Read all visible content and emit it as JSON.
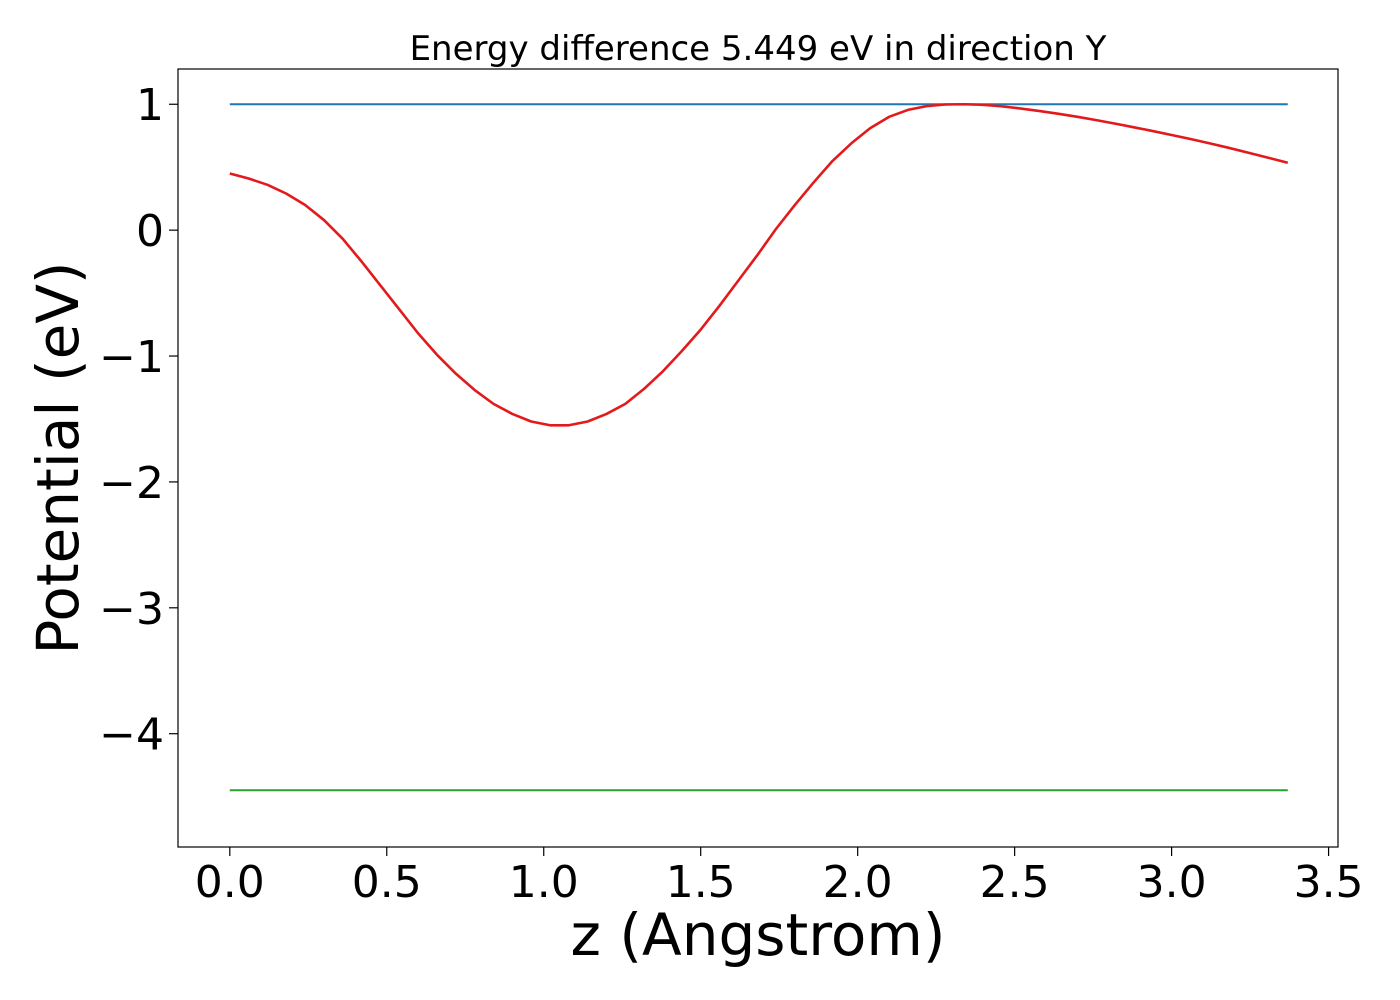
{
  "chart_data": {
    "type": "line",
    "title": "Energy difference 5.449 eV in direction Y",
    "xlabel": "z (Angstrom)",
    "ylabel": "Potential (eV)",
    "xlim": [
      -0.165,
      3.53
    ],
    "ylim": [
      -4.9,
      1.28
    ],
    "x_ticks": [
      {
        "value": 0.0,
        "label": "0.0"
      },
      {
        "value": 0.5,
        "label": "0.5"
      },
      {
        "value": 1.0,
        "label": "1.0"
      },
      {
        "value": 1.5,
        "label": "1.5"
      },
      {
        "value": 2.0,
        "label": "2.0"
      },
      {
        "value": 2.5,
        "label": "2.5"
      },
      {
        "value": 3.0,
        "label": "3.0"
      },
      {
        "value": 3.5,
        "label": "3.5"
      }
    ],
    "y_ticks": [
      {
        "value": 1,
        "label": "1"
      },
      {
        "value": 0,
        "label": "0"
      },
      {
        "value": -1,
        "label": "−1"
      },
      {
        "value": -2,
        "label": "−2"
      },
      {
        "value": -3,
        "label": "−3"
      },
      {
        "value": -4,
        "label": "−4"
      }
    ],
    "grid": false,
    "series": [
      {
        "color": "#1f77b4",
        "x": [
          0.0,
          3.37
        ],
        "y": [
          1.0,
          1.0
        ]
      },
      {
        "color": "#2ca02c",
        "x": [
          0.0,
          3.37
        ],
        "y": [
          -4.449,
          -4.449
        ]
      },
      {
        "color": "#e31a1c",
        "x": [
          0.0,
          0.06,
          0.12,
          0.18,
          0.24,
          0.3,
          0.36,
          0.42,
          0.48,
          0.54,
          0.6,
          0.66,
          0.72,
          0.78,
          0.84,
          0.9,
          0.96,
          1.02,
          1.08,
          1.14,
          1.2,
          1.26,
          1.32,
          1.38,
          1.44,
          1.5,
          1.56,
          1.62,
          1.68,
          1.74,
          1.8,
          1.86,
          1.92,
          1.98,
          2.04,
          2.1,
          2.16,
          2.22,
          2.28,
          2.34,
          2.4,
          2.46,
          2.52,
          2.58,
          2.64,
          2.7,
          2.76,
          2.82,
          2.88,
          2.94,
          3.0,
          3.06,
          3.12,
          3.18,
          3.24,
          3.3,
          3.37
        ],
        "y": [
          0.45,
          0.41,
          0.36,
          0.29,
          0.2,
          0.08,
          -0.07,
          -0.25,
          -0.44,
          -0.63,
          -0.82,
          -0.99,
          -1.14,
          -1.27,
          -1.38,
          -1.46,
          -1.52,
          -1.55,
          -1.55,
          -1.52,
          -1.46,
          -1.38,
          -1.26,
          -1.12,
          -0.96,
          -0.79,
          -0.6,
          -0.4,
          -0.2,
          0.01,
          0.2,
          0.38,
          0.55,
          0.69,
          0.81,
          0.9,
          0.955,
          0.985,
          0.998,
          1.0,
          0.995,
          0.983,
          0.966,
          0.946,
          0.924,
          0.9,
          0.874,
          0.846,
          0.817,
          0.787,
          0.756,
          0.724,
          0.69,
          0.655,
          0.618,
          0.58,
          0.535
        ]
      }
    ]
  }
}
